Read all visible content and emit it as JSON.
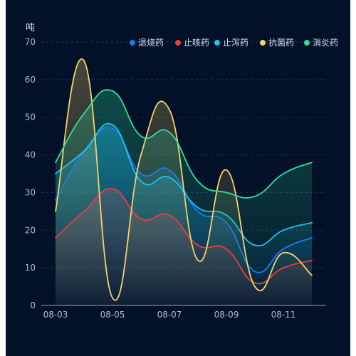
{
  "chart_data": {
    "type": "area",
    "y_unit": "吨",
    "categories": [
      "08-03",
      "08-04",
      "08-05",
      "08-06",
      "08-07",
      "08-08",
      "08-09",
      "08-10",
      "08-11",
      "08-12"
    ],
    "x_tick_labels": [
      "08-03",
      "08-05",
      "08-07",
      "08-09",
      "08-11"
    ],
    "y_ticks": [
      0,
      10,
      20,
      30,
      40,
      50,
      60,
      70
    ],
    "ylim": [
      0,
      70
    ],
    "grid": "horizontal dashed",
    "legend_position": "top-right",
    "series": [
      {
        "name": "退烧药",
        "color": "#1c7bf1",
        "values": [
          28,
          41,
          47,
          35,
          36,
          25,
          22,
          9,
          15,
          18
        ]
      },
      {
        "name": "止咳药",
        "color": "#f03a3a",
        "values": [
          18,
          25,
          31,
          23,
          24,
          16,
          15,
          6,
          10,
          12
        ]
      },
      {
        "name": "止泻药",
        "color": "#19c6ee",
        "values": [
          35,
          41,
          48,
          33,
          34,
          26,
          24,
          16,
          20,
          22
        ]
      },
      {
        "name": "抗菌药",
        "color": "#f6d269",
        "values": [
          25,
          65,
          2,
          40,
          52,
          12,
          36,
          5,
          14,
          8
        ]
      },
      {
        "name": "消炎药",
        "color": "#2fe09a",
        "values": [
          38,
          51,
          57,
          45,
          46,
          33,
          30,
          29,
          35,
          38
        ]
      }
    ],
    "title": ""
  }
}
